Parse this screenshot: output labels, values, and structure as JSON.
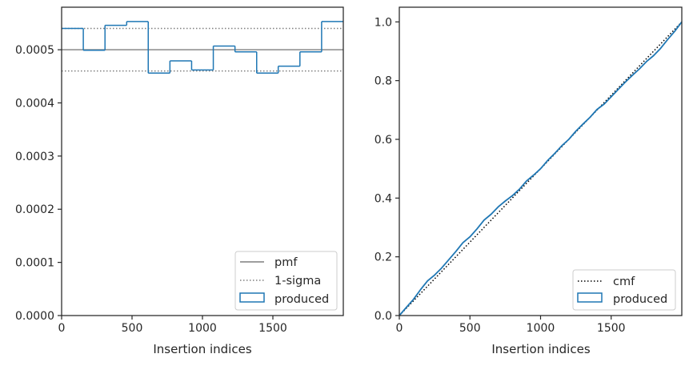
{
  "chart_data": [
    {
      "type": "histogram-step",
      "xlabel": "Insertion indices",
      "ylabel": "",
      "xlim": [
        0,
        2000
      ],
      "ylim": [
        0,
        0.00058
      ],
      "xticks": [
        0,
        500,
        1000,
        1500
      ],
      "xtick_labels": [
        "0",
        "500",
        "1000",
        "1500"
      ],
      "yticks": [
        0,
        0.0001,
        0.0002,
        0.0003,
        0.0004,
        0.0005
      ],
      "ytick_labels": [
        "0.0000",
        "0.0001",
        "0.0002",
        "0.0003",
        "0.0004",
        "0.0005"
      ],
      "bin_edges": [
        0,
        154,
        308,
        462,
        615,
        769,
        923,
        1077,
        1231,
        1385,
        1538,
        1692,
        1846,
        2000
      ],
      "produced": [
        0.00054,
        0.000499,
        0.000546,
        0.000553,
        0.000456,
        0.000479,
        0.000462,
        0.000507,
        0.000496,
        0.000456,
        0.000469,
        0.000496,
        0.000553
      ],
      "pmf": 0.0005,
      "sigma_upper": 0.00054,
      "sigma_lower": 0.00046,
      "legend": {
        "placement": "lower right",
        "entries": [
          "pmf",
          "1-sigma",
          "produced"
        ]
      },
      "colors": {
        "produced": "#1f77b4",
        "pmf": "#7f7f7f",
        "sigma": "#7f7f7f"
      }
    },
    {
      "type": "line",
      "xlabel": "Insertion indices",
      "ylabel": "",
      "xlim": [
        0,
        2000
      ],
      "ylim": [
        0,
        1.05
      ],
      "xticks": [
        0,
        500,
        1000,
        1500
      ],
      "xtick_labels": [
        "0",
        "500",
        "1000",
        "1500"
      ],
      "yticks": [
        0,
        0.2,
        0.4,
        0.6,
        0.8,
        1.0
      ],
      "ytick_labels": [
        "0.0",
        "0.2",
        "0.4",
        "0.6",
        "0.8",
        "1.0"
      ],
      "cmf": {
        "x": [
          0,
          2000
        ],
        "y": [
          0,
          1
        ]
      },
      "produced": {
        "x": [
          0,
          50,
          100,
          150,
          200,
          250,
          300,
          350,
          400,
          450,
          500,
          550,
          600,
          650,
          700,
          750,
          800,
          850,
          900,
          950,
          1000,
          1050,
          1100,
          1150,
          1200,
          1250,
          1300,
          1350,
          1400,
          1450,
          1500,
          1550,
          1600,
          1650,
          1700,
          1750,
          1800,
          1850,
          1900,
          1950,
          2000
        ],
        "y": [
          0,
          0.028,
          0.055,
          0.088,
          0.118,
          0.138,
          0.162,
          0.19,
          0.218,
          0.248,
          0.268,
          0.295,
          0.325,
          0.345,
          0.37,
          0.39,
          0.408,
          0.43,
          0.458,
          0.478,
          0.5,
          0.528,
          0.552,
          0.578,
          0.6,
          0.628,
          0.652,
          0.675,
          0.702,
          0.72,
          0.745,
          0.77,
          0.795,
          0.818,
          0.84,
          0.865,
          0.885,
          0.91,
          0.94,
          0.968,
          1.0
        ]
      },
      "legend": {
        "placement": "lower right",
        "entries": [
          "cmf",
          "produced"
        ]
      },
      "colors": {
        "produced": "#1f77b4",
        "cmf": "#000000"
      }
    }
  ]
}
